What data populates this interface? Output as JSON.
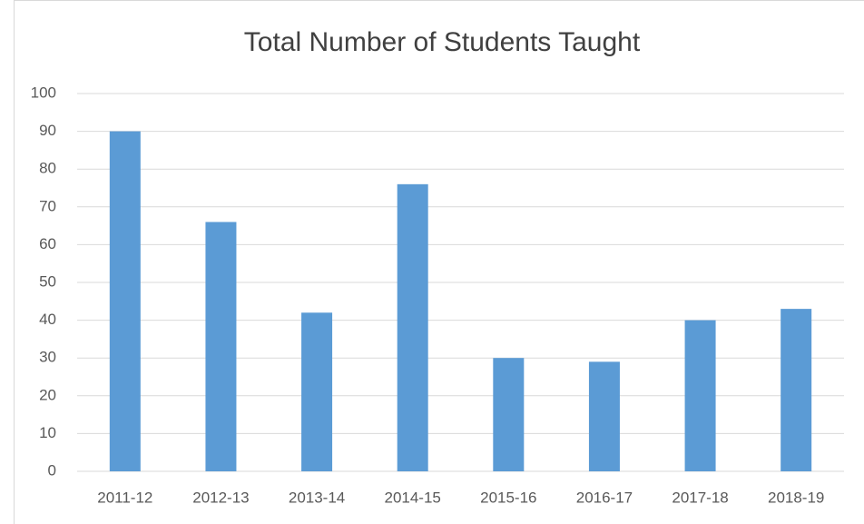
{
  "chart_data": {
    "type": "bar",
    "title": "Total Number of Students Taught",
    "categories": [
      "2011-12",
      "2012-13",
      "2013-14",
      "2014-15",
      "2015-16",
      "2016-17",
      "2017-18",
      "2018-19"
    ],
    "values": [
      90,
      66,
      42,
      76,
      30,
      29,
      40,
      43
    ],
    "color": "#5b9bd5",
    "ylim": [
      0,
      100
    ],
    "yticks": [
      0,
      10,
      20,
      30,
      40,
      50,
      60,
      70,
      80,
      90,
      100
    ],
    "grid": true
  }
}
